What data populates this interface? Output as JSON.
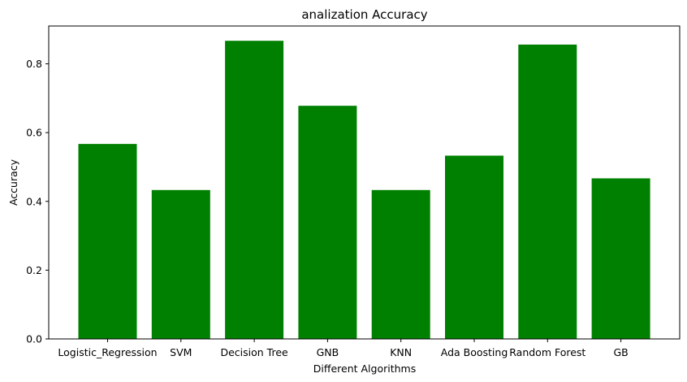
{
  "chart_data": {
    "type": "bar",
    "title": "analization Accuracy",
    "xlabel": "Different Algorithms",
    "ylabel": "Accuracy",
    "categories": [
      "Logistic_Regression",
      "SVM",
      "Decision Tree",
      "GNB",
      "KNN",
      "Ada Boosting",
      "Random Forest",
      "GB"
    ],
    "values": [
      0.567,
      0.433,
      0.867,
      0.678,
      0.433,
      0.533,
      0.856,
      0.467
    ],
    "ylim": [
      0,
      0.91
    ],
    "yticks": [
      0.0,
      0.2,
      0.4,
      0.6,
      0.8
    ],
    "ytick_labels": [
      "0.0",
      "0.2",
      "0.4",
      "0.6",
      "0.8"
    ],
    "bar_color": "#008000",
    "grid": false,
    "legend": null
  }
}
